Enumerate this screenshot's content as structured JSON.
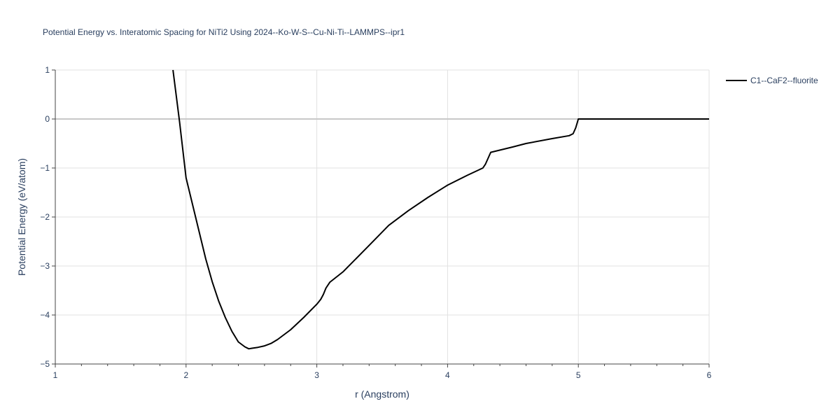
{
  "chart_data": {
    "type": "line",
    "title": "Potential Energy vs. Interatomic Spacing for NiTi2 Using 2024--Ko-W-S--Cu-Ni-Ti--LAMMPS--ipr1",
    "xlabel": "r (Angstrom)",
    "ylabel": "Potential Energy (eV/atom)",
    "xlim": [
      1,
      6
    ],
    "ylim": [
      -5,
      1
    ],
    "xticks": [
      1,
      2,
      3,
      4,
      5,
      6
    ],
    "xtick_labels": [
      "1",
      "2",
      "3",
      "4",
      "5",
      "6"
    ],
    "yticks": [
      1,
      0,
      -1,
      -2,
      -3,
      -4,
      -5
    ],
    "ytick_labels": [
      "1",
      "0",
      "−1",
      "−2",
      "−3",
      "−4",
      "−5"
    ],
    "grid": true,
    "legend_position": "top-right",
    "series": [
      {
        "name": "C1--CaF2--fluorite",
        "color": "#000000",
        "x": [
          1.9,
          1.95,
          2.0,
          2.05,
          2.1,
          2.15,
          2.2,
          2.25,
          2.3,
          2.35,
          2.4,
          2.45,
          2.48,
          2.5,
          2.55,
          2.6,
          2.65,
          2.7,
          2.8,
          2.9,
          3.0,
          3.03,
          3.05,
          3.07,
          3.1,
          3.2,
          3.4,
          3.55,
          3.7,
          3.85,
          4.0,
          4.15,
          4.27,
          4.29,
          4.31,
          4.33,
          4.5,
          4.6,
          4.8,
          4.93,
          4.96,
          4.98,
          5.0,
          5.2,
          5.5,
          5.8,
          6.0
        ],
        "y": [
          1.0,
          -0.05,
          -1.2,
          -1.75,
          -2.3,
          -2.85,
          -3.32,
          -3.72,
          -4.05,
          -4.33,
          -4.55,
          -4.65,
          -4.69,
          -4.68,
          -4.66,
          -4.63,
          -4.58,
          -4.5,
          -4.3,
          -4.05,
          -3.78,
          -3.68,
          -3.58,
          -3.45,
          -3.33,
          -3.12,
          -2.58,
          -2.17,
          -1.87,
          -1.6,
          -1.35,
          -1.15,
          -1.0,
          -0.92,
          -0.8,
          -0.68,
          -0.57,
          -0.5,
          -0.4,
          -0.34,
          -0.3,
          -0.18,
          0.0,
          0.0,
          0.0,
          0.0,
          0.0
        ]
      }
    ]
  }
}
